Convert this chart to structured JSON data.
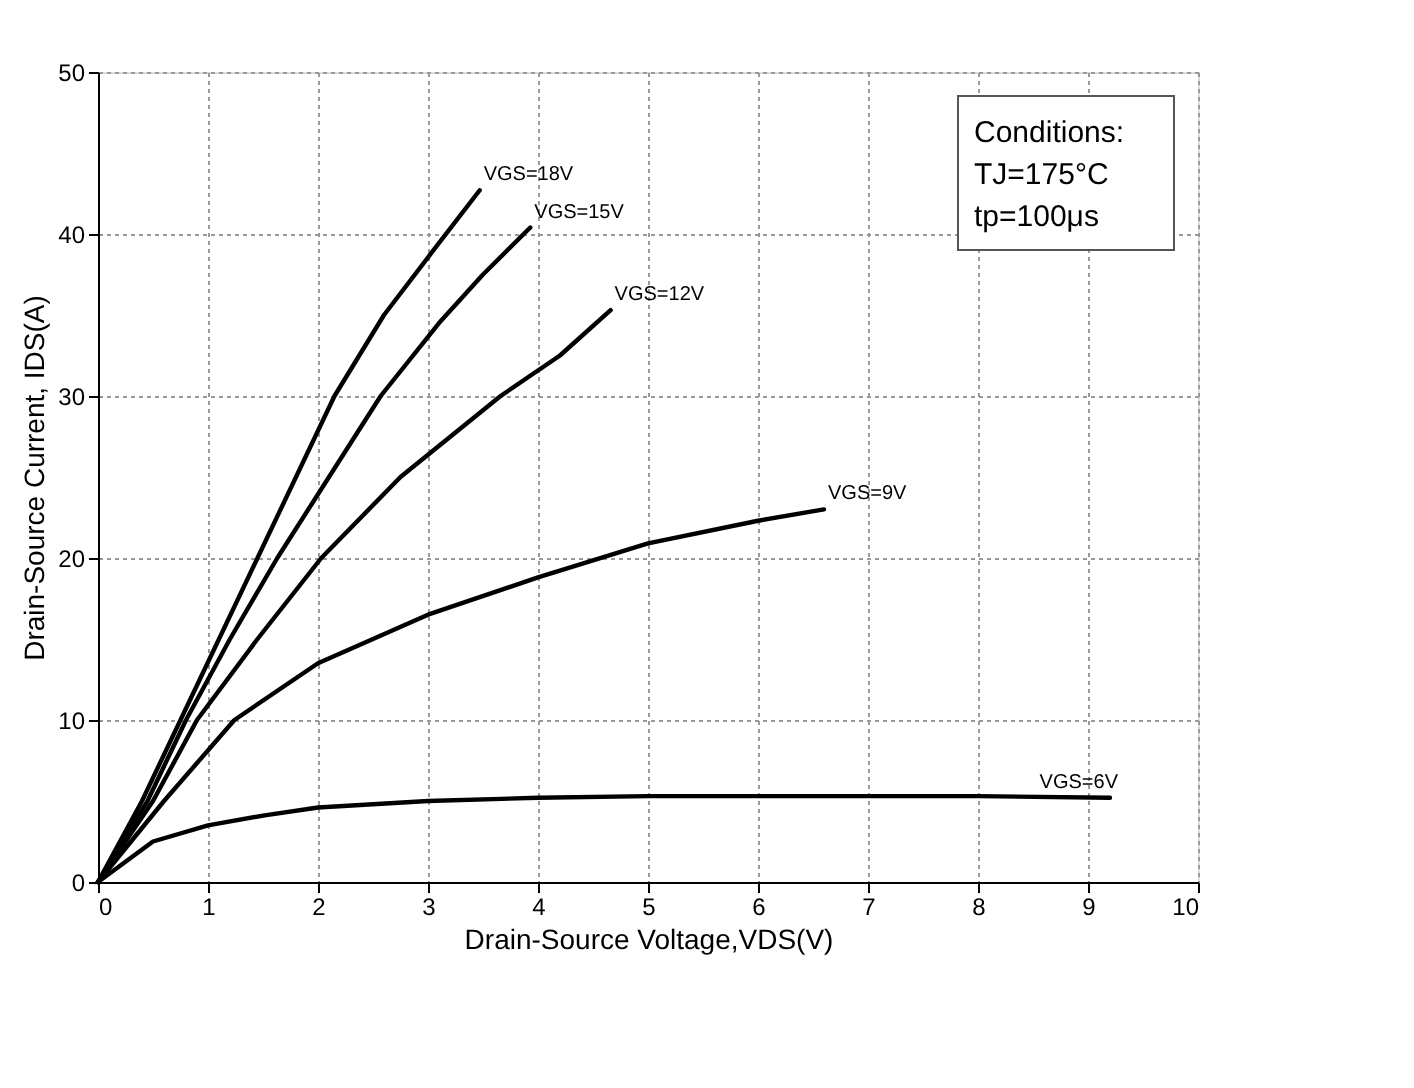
{
  "chart_data": {
    "type": "line",
    "xlabel": "Drain-Source Voltage,VDS(V)",
    "ylabel": "Drain-Source Current, IDS(A)",
    "xlim": [
      0,
      10
    ],
    "ylim": [
      0,
      50
    ],
    "xticks": [
      0,
      1,
      2,
      3,
      4,
      5,
      6,
      7,
      8,
      9,
      10
    ],
    "yticks": [
      0,
      10,
      20,
      30,
      40,
      50
    ],
    "grid": true,
    "legend": false,
    "marker": "none",
    "line_style": "solid",
    "series": [
      {
        "name": "VGS=18V",
        "color": "#000000",
        "x": [
          0,
          0.4,
          0.75,
          1.1,
          1.45,
          1.8,
          2.15,
          2.6,
          3.05,
          3.47
        ],
        "values": [
          0,
          5,
          10,
          15,
          20,
          25,
          30,
          35,
          39,
          42.7
        ]
      },
      {
        "name": "VGS=15V",
        "color": "#000000",
        "x": [
          0,
          0.45,
          0.8,
          1.2,
          1.63,
          2.1,
          2.57,
          3.1,
          3.5,
          3.93
        ],
        "values": [
          0,
          5,
          10,
          15,
          20,
          25,
          30,
          34.5,
          37.5,
          40.4
        ]
      },
      {
        "name": "VGS=12V",
        "color": "#000000",
        "x": [
          0,
          0.5,
          0.9,
          1.45,
          2.03,
          2.75,
          3.66,
          4.2,
          4.66
        ],
        "values": [
          0,
          5,
          10,
          15,
          20,
          25,
          30,
          32.5,
          35.3
        ]
      },
      {
        "name": "VGS=9V",
        "color": "#000000",
        "x": [
          0,
          0.6,
          1.24,
          2,
          3,
          4,
          5,
          6,
          6.6
        ],
        "values": [
          0,
          5,
          10,
          13.5,
          16.5,
          18.8,
          20.9,
          22.3,
          23
        ]
      },
      {
        "name": "VGS=6V",
        "color": "#000000",
        "x": [
          0,
          0.5,
          1,
          1.5,
          2,
          3,
          4,
          5,
          6,
          7,
          8,
          9.2
        ],
        "values": [
          0,
          2.5,
          3.5,
          4.1,
          4.6,
          5,
          5.2,
          5.3,
          5.3,
          5.3,
          5.3,
          5.2
        ]
      }
    ],
    "annotations": [
      "Conditions:",
      "TJ=175°C",
      "tp=100μs"
    ]
  }
}
